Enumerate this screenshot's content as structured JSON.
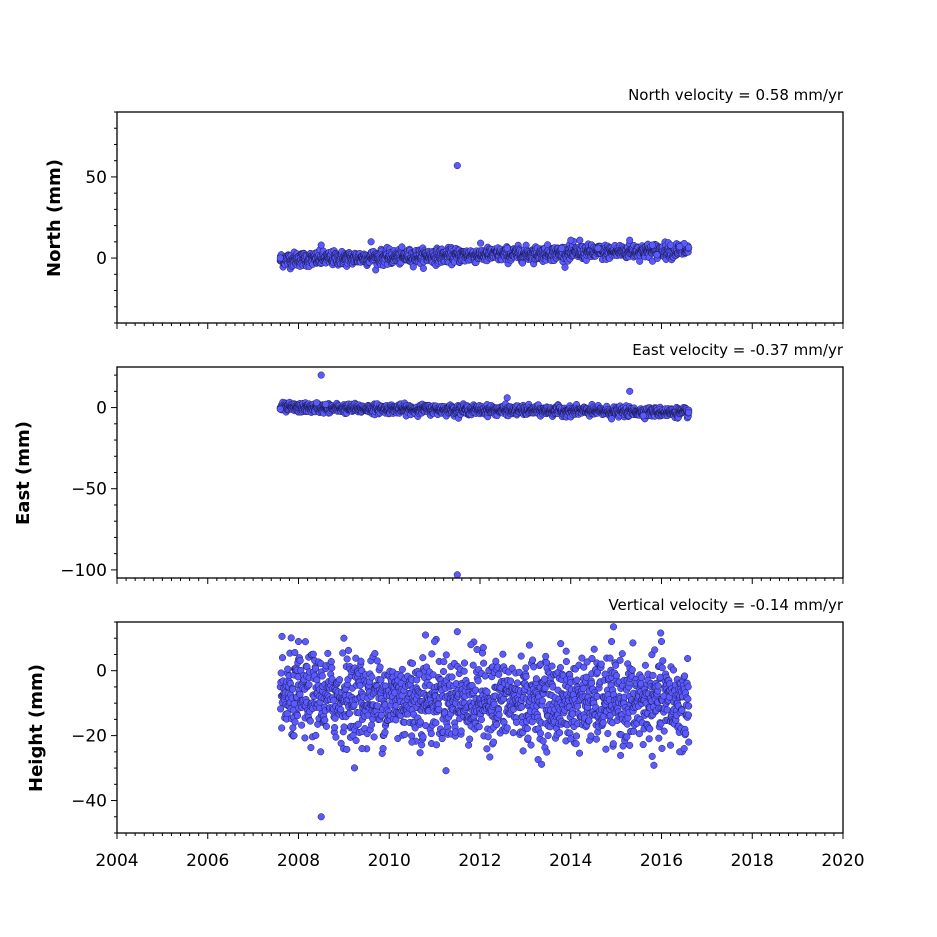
{
  "chart_data": [
    {
      "type": "scatter",
      "title": "North velocity = 0.58 mm/yr",
      "ylabel": "North (mm)",
      "xlabel": "",
      "xlim": [
        2004,
        2020
      ],
      "ylim": [
        -40,
        90
      ],
      "yticks": [
        0,
        50
      ],
      "ytick_labels": [
        "0",
        "50"
      ],
      "trend": {
        "start": [
          2007.6,
          -1
        ],
        "end": [
          2016.6,
          5
        ],
        "noise": 2.2
      },
      "points": [
        [
          2007.6,
          0
        ],
        [
          2011.5,
          57
        ],
        [
          2008.5,
          8
        ],
        [
          2009.6,
          10
        ],
        [
          2014.0,
          11
        ],
        [
          2014.2,
          11
        ],
        [
          2015.3,
          11
        ],
        [
          2016.5,
          9
        ],
        [
          2012.6,
          6
        ],
        [
          2013.8,
          6
        ],
        [
          2014.6,
          6
        ],
        [
          2015.8,
          8
        ],
        [
          2016.2,
          8
        ],
        [
          2016.4,
          7
        ],
        [
          2015.9,
          2
        ]
      ],
      "grid": false,
      "color": "#5a5aff"
    },
    {
      "type": "scatter",
      "title": "East velocity = -0.37 mm/yr",
      "ylabel": "East (mm)",
      "xlabel": "",
      "xlim": [
        2004,
        2020
      ],
      "ylim": [
        -105,
        25
      ],
      "yticks": [
        0,
        -50,
        -100
      ],
      "ytick_labels": [
        "0",
        "−50",
        "−100"
      ],
      "trend": {
        "start": [
          2007.6,
          0
        ],
        "end": [
          2016.6,
          -3
        ],
        "noise": 1.4
      },
      "points": [
        [
          2008.5,
          20
        ],
        [
          2011.5,
          -103
        ],
        [
          2012.6,
          6
        ],
        [
          2015.3,
          10
        ],
        [
          2007.6,
          -1
        ],
        [
          2008.4,
          3
        ],
        [
          2008.6,
          2
        ],
        [
          2014.9,
          -7
        ],
        [
          2015.6,
          -5
        ],
        [
          2016.6,
          -3
        ]
      ],
      "grid": false,
      "color": "#5a5aff"
    },
    {
      "type": "scatter",
      "title": "Vertical velocity = -0.14 mm/yr",
      "ylabel": "Height (mm)",
      "xlabel": "",
      "xlim": [
        2004,
        2020
      ],
      "ylim": [
        -50,
        15
      ],
      "yticks": [
        0,
        -20,
        -40
      ],
      "ytick_labels": [
        "0",
        "−20",
        "−40"
      ],
      "xticks": [
        2004,
        2006,
        2008,
        2010,
        2012,
        2014,
        2016,
        2018,
        2020
      ],
      "xtick_labels": [
        "2004",
        "2006",
        "2008",
        "2010",
        "2012",
        "2014",
        "2016",
        "2018",
        "2020"
      ],
      "trend": {
        "start": [
          2007.6,
          -8
        ],
        "end": [
          2016.6,
          -10
        ],
        "noise": 6.5
      },
      "points": [
        [
          2008.5,
          -45
        ],
        [
          2011.5,
          12
        ],
        [
          2010.8,
          11
        ],
        [
          2008.0,
          9
        ],
        [
          2009.0,
          10
        ],
        [
          2011.0,
          9
        ],
        [
          2011.8,
          8
        ],
        [
          2014.9,
          9
        ],
        [
          2016.0,
          9
        ],
        [
          2013.9,
          6
        ],
        [
          2016.4,
          -25
        ],
        [
          2016.5,
          -24
        ],
        [
          2015.3,
          -23
        ],
        [
          2009.4,
          -24
        ],
        [
          2013.5,
          -20
        ],
        [
          2014.0,
          -21
        ],
        [
          2007.9,
          -20
        ],
        [
          2016.6,
          -22
        ],
        [
          2012.3,
          -22
        ],
        [
          2010.5,
          -22
        ]
      ],
      "grid": false,
      "color": "#5a5aff"
    }
  ]
}
